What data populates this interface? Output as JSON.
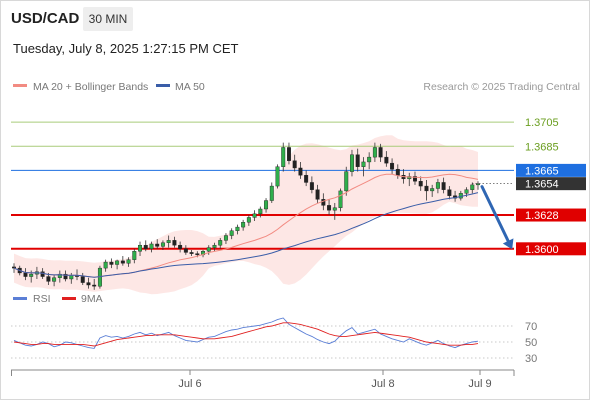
{
  "header": {
    "symbol": "USD/CAD",
    "timeframe": "30 MIN",
    "datetime": "Tuesday, July 8, 2025 1:27:15 PM CET"
  },
  "legend": {
    "ma20_label": "MA 20 + Bollinger Bands",
    "ma50_label": "MA 50",
    "credit": "Research © 2025 Trading Central",
    "ma20_color": "#f28b82",
    "ma50_color": "#3a5da8"
  },
  "oscillator_legend": {
    "rsi_label": "RSI",
    "ma9_label": "9MA",
    "rsi_color": "#5b7fd6",
    "ma9_color": "#e02020"
  },
  "chart_data": [
    {
      "type": "candlestick",
      "y_domain": [
        1.357,
        1.3725
      ],
      "levels": [
        {
          "label": "1.3705",
          "value": 1.3705,
          "kind": "resistance",
          "color": "#6a9e1f"
        },
        {
          "label": "1.3685",
          "value": 1.3685,
          "kind": "resistance",
          "color": "#6a9e1f"
        },
        {
          "label": "1.3665",
          "value": 1.3665,
          "kind": "pivot",
          "color": "#1e6fe0"
        },
        {
          "label": "1.3654",
          "value": 1.3654,
          "kind": "last_price",
          "color": "#333333"
        },
        {
          "label": "1.3628",
          "value": 1.3628,
          "kind": "support",
          "color": "#e00000"
        },
        {
          "label": "1.3600",
          "value": 1.36,
          "kind": "support",
          "color": "#e00000"
        }
      ],
      "x_ticks": [
        "Jul 6",
        "Jul 8",
        "Jul 9"
      ],
      "forecast": {
        "direction": "down",
        "target": 1.36,
        "color": "#2f66b3"
      },
      "candles": [
        [
          1.3585,
          1.3588,
          1.358,
          1.3584
        ],
        [
          1.3584,
          1.3586,
          1.3578,
          1.358
        ],
        [
          1.358,
          1.3584,
          1.3574,
          1.3577
        ],
        [
          1.3577,
          1.3582,
          1.3572,
          1.3579
        ],
        [
          1.3579,
          1.3585,
          1.3575,
          1.3581
        ],
        [
          1.3581,
          1.3584,
          1.3575,
          1.3577
        ],
        [
          1.3577,
          1.358,
          1.357,
          1.3573
        ],
        [
          1.3573,
          1.3578,
          1.3569,
          1.3576
        ],
        [
          1.3576,
          1.3582,
          1.3572,
          1.3579
        ],
        [
          1.3579,
          1.3582,
          1.3573,
          1.3575
        ],
        [
          1.3575,
          1.358,
          1.3571,
          1.3578
        ],
        [
          1.3578,
          1.3583,
          1.3574,
          1.3577
        ],
        [
          1.3577,
          1.358,
          1.357,
          1.3572
        ],
        [
          1.3572,
          1.3576,
          1.3567,
          1.357
        ],
        [
          1.357,
          1.3575,
          1.3566,
          1.3569
        ],
        [
          1.3569,
          1.3586,
          1.3567,
          1.3584
        ],
        [
          1.3584,
          1.3591,
          1.3581,
          1.3589
        ],
        [
          1.3589,
          1.3592,
          1.3584,
          1.3587
        ],
        [
          1.3587,
          1.3591,
          1.3583,
          1.359
        ],
        [
          1.359,
          1.3594,
          1.3586,
          1.3588
        ],
        [
          1.3588,
          1.3593,
          1.3585,
          1.3591
        ],
        [
          1.3591,
          1.36,
          1.3588,
          1.3598
        ],
        [
          1.3598,
          1.3606,
          1.3594,
          1.3603
        ],
        [
          1.3603,
          1.3607,
          1.3598,
          1.36
        ],
        [
          1.36,
          1.3606,
          1.3597,
          1.3604
        ],
        [
          1.3604,
          1.3608,
          1.36,
          1.3602
        ],
        [
          1.3602,
          1.3607,
          1.3599,
          1.3605
        ],
        [
          1.3605,
          1.3611,
          1.3601,
          1.3607
        ],
        [
          1.3607,
          1.361,
          1.3601,
          1.3603
        ],
        [
          1.3603,
          1.3606,
          1.3597,
          1.36
        ],
        [
          1.36,
          1.3603,
          1.3595,
          1.3597
        ],
        [
          1.3597,
          1.3599,
          1.3594,
          1.3596
        ],
        [
          1.3596,
          1.3598,
          1.3593,
          1.3595
        ],
        [
          1.3595,
          1.3599,
          1.3593,
          1.3598
        ],
        [
          1.3598,
          1.3603,
          1.3595,
          1.3601
        ],
        [
          1.3601,
          1.3605,
          1.3598,
          1.3603
        ],
        [
          1.3603,
          1.3609,
          1.36,
          1.3607
        ],
        [
          1.3607,
          1.3613,
          1.3604,
          1.3611
        ],
        [
          1.3611,
          1.3617,
          1.3608,
          1.3615
        ],
        [
          1.3615,
          1.362,
          1.3612,
          1.3618
        ],
        [
          1.3618,
          1.3624,
          1.3615,
          1.3622
        ],
        [
          1.3622,
          1.3628,
          1.3619,
          1.3626
        ],
        [
          1.3626,
          1.3632,
          1.3623,
          1.3629
        ],
        [
          1.3629,
          1.3635,
          1.3626,
          1.3633
        ],
        [
          1.3633,
          1.3642,
          1.363,
          1.364
        ],
        [
          1.364,
          1.3655,
          1.3638,
          1.3652
        ],
        [
          1.3652,
          1.367,
          1.365,
          1.3668
        ],
        [
          1.3668,
          1.3688,
          1.3664,
          1.3684
        ],
        [
          1.3684,
          1.3688,
          1.367,
          1.3673
        ],
        [
          1.3673,
          1.3678,
          1.3664,
          1.3667
        ],
        [
          1.3667,
          1.3672,
          1.3658,
          1.3661
        ],
        [
          1.3661,
          1.3665,
          1.3652,
          1.3655
        ],
        [
          1.3655,
          1.366,
          1.3646,
          1.3649
        ],
        [
          1.3649,
          1.3653,
          1.3638,
          1.3641
        ],
        [
          1.3641,
          1.3646,
          1.3632,
          1.3636
        ],
        [
          1.3636,
          1.3641,
          1.3628,
          1.3632
        ],
        [
          1.3632,
          1.3638,
          1.3624,
          1.3634
        ],
        [
          1.3634,
          1.365,
          1.3631,
          1.3648
        ],
        [
          1.3648,
          1.3668,
          1.3644,
          1.3664
        ],
        [
          1.3664,
          1.3682,
          1.366,
          1.3678
        ],
        [
          1.3678,
          1.3683,
          1.3664,
          1.3668
        ],
        [
          1.3668,
          1.3676,
          1.366,
          1.3672
        ],
        [
          1.3672,
          1.368,
          1.3666,
          1.3676
        ],
        [
          1.3676,
          1.3688,
          1.3672,
          1.3684
        ],
        [
          1.3684,
          1.3687,
          1.3672,
          1.3676
        ],
        [
          1.3676,
          1.3681,
          1.3668,
          1.3671
        ],
        [
          1.3671,
          1.3675,
          1.3662,
          1.3666
        ],
        [
          1.3666,
          1.367,
          1.3658,
          1.3661
        ],
        [
          1.3661,
          1.3666,
          1.3654,
          1.3658
        ],
        [
          1.3658,
          1.3663,
          1.3652,
          1.366
        ],
        [
          1.366,
          1.3664,
          1.3653,
          1.3656
        ],
        [
          1.3656,
          1.366,
          1.3648,
          1.3652
        ],
        [
          1.3652,
          1.3657,
          1.364,
          1.3648
        ],
        [
          1.3648,
          1.3653,
          1.3643,
          1.365
        ],
        [
          1.365,
          1.3658,
          1.3646,
          1.3655
        ],
        [
          1.3655,
          1.3659,
          1.3646,
          1.3649
        ],
        [
          1.3649,
          1.3652,
          1.3641,
          1.3644
        ],
        [
          1.3644,
          1.3648,
          1.3639,
          1.3642
        ],
        [
          1.3642,
          1.3648,
          1.364,
          1.3646
        ],
        [
          1.3646,
          1.3651,
          1.3643,
          1.3649
        ],
        [
          1.3649,
          1.3655,
          1.3646,
          1.3653
        ],
        [
          1.3653,
          1.3656,
          1.3649,
          1.3654
        ]
      ]
    },
    {
      "type": "line",
      "indicator": "RSI",
      "ylim": [
        20,
        80
      ],
      "ticks": [
        70,
        50,
        30
      ],
      "series": [
        {
          "name": "RSI",
          "values": [
            52,
            49,
            46,
            45,
            47,
            50,
            48,
            44,
            46,
            50,
            49,
            47,
            45,
            43,
            42,
            55,
            58,
            56,
            57,
            55,
            57,
            60,
            62,
            59,
            61,
            58,
            60,
            62,
            58,
            55,
            52,
            51,
            50,
            53,
            56,
            57,
            60,
            63,
            65,
            66,
            68,
            69,
            70,
            71,
            73,
            75,
            78,
            80,
            72,
            68,
            64,
            60,
            57,
            53,
            50,
            48,
            51,
            58,
            64,
            68,
            60,
            62,
            64,
            66,
            60,
            57,
            54,
            52,
            50,
            54,
            51,
            48,
            46,
            49,
            52,
            48,
            45,
            43,
            46,
            48,
            50,
            51
          ]
        },
        {
          "name": "9MA",
          "values": [
            50,
            49,
            48,
            47,
            47,
            48,
            48,
            47,
            47,
            47,
            47,
            47,
            47,
            46,
            45,
            47,
            49,
            51,
            53,
            54,
            55,
            56,
            57,
            58,
            58,
            59,
            59,
            59,
            59,
            58,
            57,
            56,
            55,
            54,
            54,
            54,
            55,
            56,
            57,
            59,
            61,
            63,
            65,
            67,
            69,
            70,
            72,
            74,
            74,
            73,
            72,
            70,
            68,
            66,
            63,
            60,
            58,
            57,
            57,
            58,
            59,
            60,
            61,
            62,
            61,
            60,
            59,
            58,
            57,
            56,
            54,
            52,
            50,
            49,
            48,
            47,
            46,
            46,
            46,
            47,
            47,
            48
          ]
        }
      ]
    }
  ]
}
